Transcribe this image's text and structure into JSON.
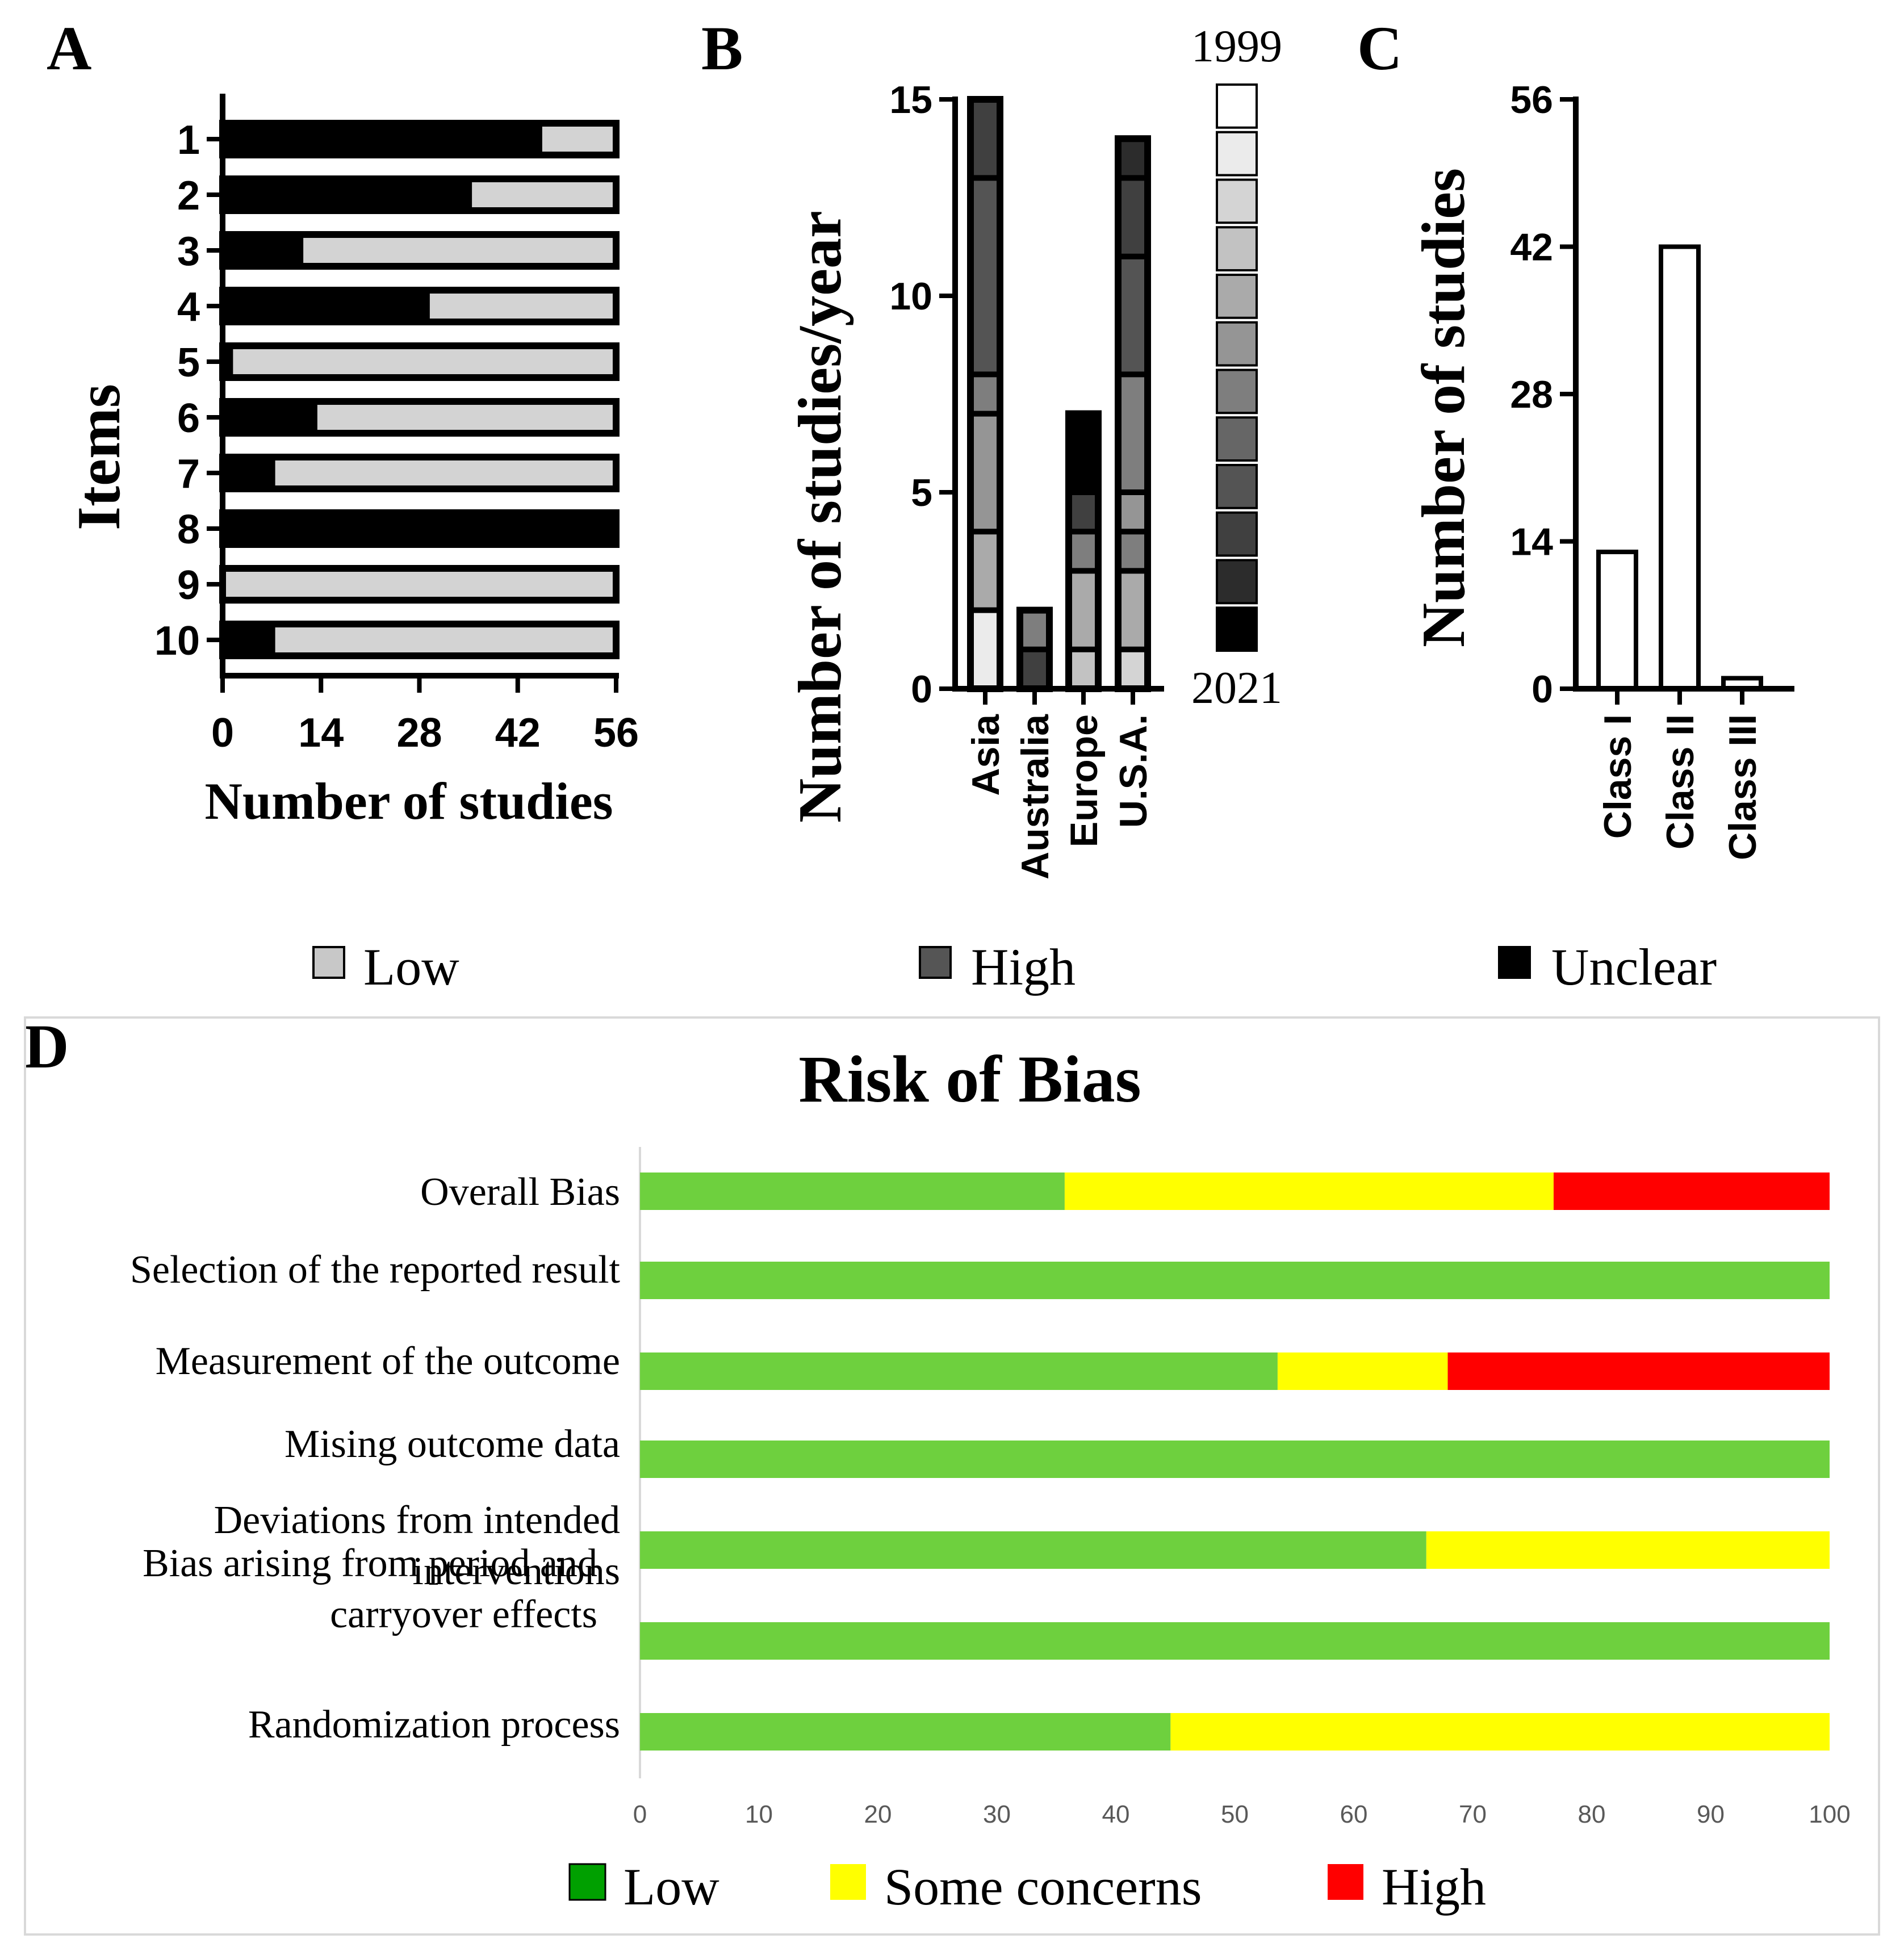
{
  "panel_labels": {
    "a": "A",
    "b": "B",
    "c": "C",
    "d": "D"
  },
  "chart_data": [
    {
      "id": "A",
      "type": "bar",
      "orientation": "horizontal",
      "stacked": true,
      "xlabel": "Number of studies",
      "ylabel": "Items",
      "xlim": [
        0,
        56
      ],
      "xticks": [
        "0",
        "14",
        "28",
        "42",
        "56"
      ],
      "categories": [
        "1",
        "2",
        "3",
        "4",
        "5",
        "6",
        "7",
        "8",
        "9",
        "10"
      ],
      "series": [
        {
          "name": "Unclear",
          "color": "#000000",
          "values": [
            45,
            35,
            11,
            29,
            1,
            13,
            7,
            56,
            0,
            7
          ]
        },
        {
          "name": "Low",
          "color": "#d3d3d3",
          "values": [
            11,
            21,
            45,
            27,
            55,
            43,
            49,
            0,
            56,
            49
          ]
        }
      ]
    },
    {
      "id": "B",
      "type": "bar",
      "stacked": true,
      "ylabel": "Number of studies/year",
      "ylim": [
        0,
        15
      ],
      "yticks": [
        "0",
        "5",
        "10",
        "15"
      ],
      "categories": [
        "Asia",
        "Australia",
        "Europe",
        "U.S.A."
      ],
      "category_totals": [
        15,
        2,
        7,
        14
      ],
      "year_scale": {
        "start": "1999",
        "end": "2021"
      },
      "year_colors": [
        "#ffffff",
        "#ebebeb",
        "#d4d4d4",
        "#c2c2c2",
        "#aaaaaa",
        "#959595",
        "#7e7e7e",
        "#666666",
        "#545454",
        "#404040",
        "#2c2c2c",
        "#000000"
      ]
    },
    {
      "id": "C",
      "type": "bar",
      "ylabel": "Number of studies",
      "ylim": [
        0,
        56
      ],
      "yticks": [
        "0",
        "14",
        "28",
        "42",
        "56"
      ],
      "categories": [
        "Class I",
        "Class II",
        "Class III"
      ],
      "values": [
        13,
        42,
        1
      ]
    },
    {
      "id": "D",
      "type": "bar",
      "orientation": "horizontal",
      "stacked": true,
      "title": "Risk of Bias",
      "xlim": [
        0,
        100
      ],
      "xticks": [
        "0",
        "10",
        "20",
        "30",
        "40",
        "50",
        "60",
        "70",
        "80",
        "90",
        "100"
      ],
      "categories": [
        [
          "Overall Bias"
        ],
        [
          "Selection of the reported result"
        ],
        [
          "Measurement of the outcome"
        ],
        [
          "Mising outcome data"
        ],
        [
          "Deviations from intended",
          "interventions"
        ],
        [
          "Bias arising from period and",
          "carryover effects"
        ],
        [
          "Randomization process"
        ]
      ],
      "series": [
        {
          "name": "Low",
          "color": "#6ed03e",
          "values": [
            35.7,
            100,
            53.6,
            100,
            66.1,
            100,
            44.6
          ]
        },
        {
          "name": "Some concerns",
          "color": "#ffff00",
          "values": [
            41.1,
            0,
            14.3,
            0,
            33.9,
            0,
            55.4
          ]
        },
        {
          "name": "High",
          "color": "#ff0000",
          "values": [
            23.2,
            0,
            32.1,
            0,
            0,
            0,
            0
          ]
        }
      ],
      "legend": [
        {
          "label": "Low",
          "color": "#00a000"
        },
        {
          "label": "Some concerns",
          "color": "#ffff00"
        },
        {
          "label": "High",
          "color": "#ff0000"
        }
      ]
    }
  ],
  "legend_top": [
    {
      "label": "Low",
      "color": "#c8c8c8"
    },
    {
      "label": "High",
      "color": "#555555"
    },
    {
      "label": "Unclear",
      "color": "#000000"
    }
  ]
}
